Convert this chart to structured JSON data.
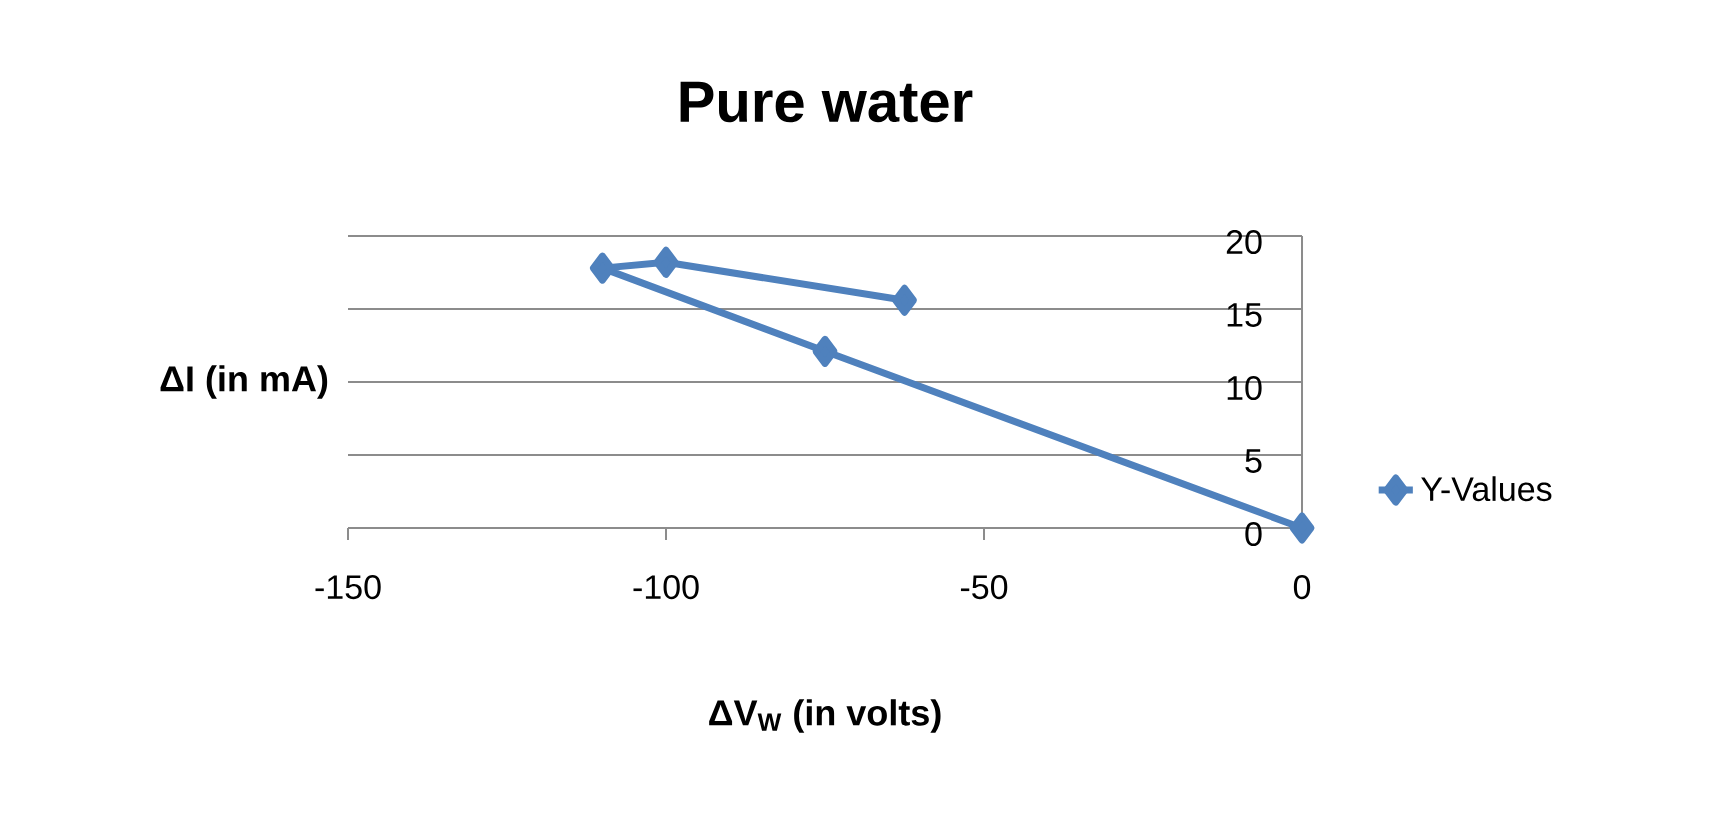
{
  "chart_data": {
    "type": "line",
    "title": "Pure water",
    "xlabel": "ΔV$_{W}$ (in volts)",
    "ylabel": "ΔI (in mA)",
    "x": [
      0,
      -75,
      -110,
      -100,
      -62.5
    ],
    "series": [
      {
        "name": "Y-Values",
        "color": "#4f81bd",
        "values": [
          0,
          12.1,
          17.8,
          18.2,
          15.6
        ]
      }
    ],
    "xlim": [
      -150,
      0
    ],
    "xticks": [
      -150,
      -100,
      -50,
      0
    ],
    "ylim": [
      0,
      20
    ],
    "yticks": [
      0,
      5,
      10,
      15,
      20
    ],
    "grid": "y",
    "legend": "right",
    "marker": "diamond",
    "line_style": "solid"
  }
}
